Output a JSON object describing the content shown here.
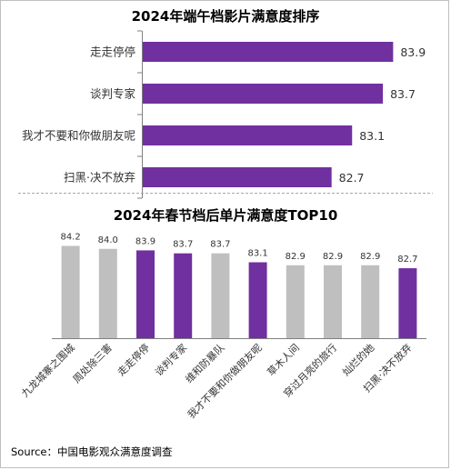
{
  "colors": {
    "purple": "#7030a0",
    "gray": "#bfbfbf",
    "axis": "#7f7f7f",
    "divider": "#a6a6a6"
  },
  "chart_data": [
    {
      "type": "bar",
      "orientation": "horizontal",
      "title": "2024年端午档影片满意度排序",
      "categories": [
        "走走停停",
        "谈判专家",
        "我才不要和你做朋友呢",
        "扫黑·决不放弃"
      ],
      "values": [
        83.9,
        83.7,
        83.1,
        82.7
      ],
      "bar_colors": [
        "purple",
        "purple",
        "purple",
        "purple"
      ],
      "xlim": [
        79.0,
        84.0
      ],
      "grid": false,
      "legend": "none"
    },
    {
      "type": "bar",
      "orientation": "vertical",
      "title": "2024年春节档后单片满意度TOP10",
      "categories": [
        "九龙城寨之围城",
        "周处除三害",
        "走走停停",
        "谈判专家",
        "维和防暴队",
        "我才不要和你做朋友呢",
        "草木人间",
        "穿过月亮的旅行",
        "灿烂的她",
        "扫黑·决不放弃"
      ],
      "values": [
        84.2,
        84.0,
        83.9,
        83.7,
        83.7,
        83.1,
        82.9,
        82.9,
        82.9,
        82.7
      ],
      "bar_colors": [
        "gray",
        "gray",
        "purple",
        "purple",
        "gray",
        "purple",
        "gray",
        "gray",
        "gray",
        "purple"
      ],
      "ylim": [
        78.0,
        84.5
      ],
      "grid": false,
      "legend": "none"
    }
  ],
  "footer": {
    "source": "Source：中国电影观众满意度调查"
  }
}
